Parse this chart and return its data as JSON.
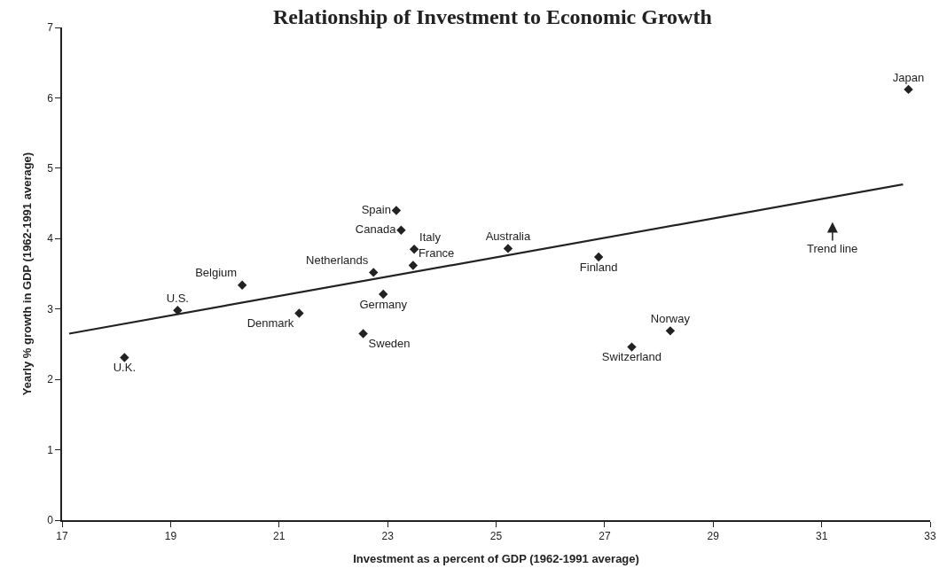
{
  "chart_data": {
    "type": "scatter",
    "title": "Relationship of Investment to Economic Growth",
    "xlabel": "Investment as a percent of GDP (1962-1991 average)",
    "ylabel": "Yearly % growth in GDP (1962-1991 average)",
    "xlim": [
      17,
      33
    ],
    "xticks": [
      17,
      19,
      21,
      23,
      25,
      27,
      29,
      31,
      33
    ],
    "ylim": [
      0,
      7
    ],
    "yticks": [
      0,
      1,
      2,
      3,
      4,
      5,
      6,
      7
    ],
    "legend": false,
    "marker": "diamond",
    "series": [
      {
        "name": "Japan",
        "color": "#222222",
        "x": [
          32.6
        ],
        "values": [
          6.12
        ]
      },
      {
        "name": "Spain",
        "color": "#222222",
        "x": [
          23.16
        ],
        "values": [
          4.4
        ]
      },
      {
        "name": "Canada",
        "color": "#222222",
        "x": [
          23.25
        ],
        "values": [
          4.12
        ]
      },
      {
        "name": "Italy",
        "color": "#222222",
        "x": [
          23.49
        ],
        "values": [
          3.85
        ]
      },
      {
        "name": "France",
        "color": "#222222",
        "x": [
          23.47
        ],
        "values": [
          3.62
        ]
      },
      {
        "name": "Australia",
        "color": "#222222",
        "x": [
          25.22
        ],
        "values": [
          3.86
        ]
      },
      {
        "name": "Netherlands",
        "color": "#222222",
        "x": [
          22.74
        ],
        "values": [
          3.52
        ]
      },
      {
        "name": "Germany",
        "color": "#222222",
        "x": [
          22.92
        ],
        "values": [
          3.21
        ]
      },
      {
        "name": "Belgium",
        "color": "#222222",
        "x": [
          20.32
        ],
        "values": [
          3.34
        ]
      },
      {
        "name": "U.S.",
        "color": "#222222",
        "x": [
          19.13
        ],
        "values": [
          2.98
        ]
      },
      {
        "name": "Denmark",
        "color": "#222222",
        "x": [
          21.37
        ],
        "values": [
          2.94
        ]
      },
      {
        "name": "Sweden",
        "color": "#222222",
        "x": [
          22.55
        ],
        "values": [
          2.65
        ]
      },
      {
        "name": "U.K.",
        "color": "#222222",
        "x": [
          18.15
        ],
        "values": [
          2.31
        ]
      },
      {
        "name": "Finland",
        "color": "#222222",
        "x": [
          26.89
        ],
        "values": [
          3.74
        ]
      },
      {
        "name": "Norway",
        "color": "#222222",
        "x": [
          28.21
        ],
        "values": [
          2.69
        ]
      },
      {
        "name": "Switzerland",
        "color": "#222222",
        "x": [
          27.5
        ],
        "values": [
          2.46
        ]
      },
      {
        "type": "line",
        "color": "#222222",
        "marker": "none",
        "line_style": "solid",
        "x": [
          17.13,
          32.5
        ],
        "values": [
          2.65,
          4.77
        ]
      }
    ],
    "annotations": [
      "Trend line"
    ]
  }
}
